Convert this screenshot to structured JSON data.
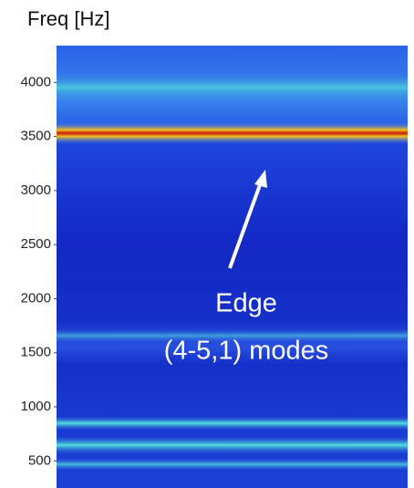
{
  "chart_data": {
    "type": "spectrogram",
    "ylabel": "Freq [Hz]",
    "ylim": [
      250,
      4340
    ],
    "yticks": [
      500,
      1000,
      1500,
      2000,
      2500,
      3000,
      3500,
      4000
    ],
    "annotations": [
      "Edge",
      "(4-5,1) modes"
    ]
  }
}
